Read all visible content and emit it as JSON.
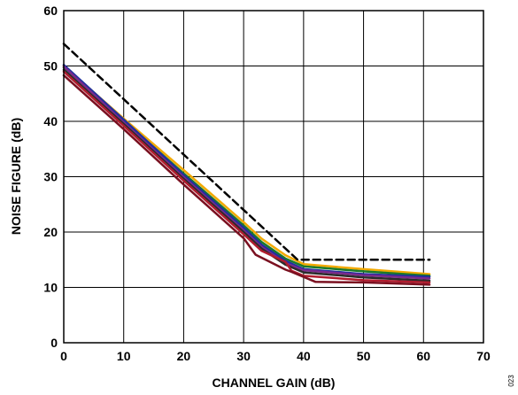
{
  "chart_data": {
    "type": "line",
    "xlabel": "CHANNEL GAIN (dB)",
    "ylabel": "NOISE FIGURE (dB)",
    "xlim": [
      0,
      70
    ],
    "ylim": [
      0,
      60
    ],
    "x_ticks": [
      0,
      10,
      20,
      30,
      40,
      50,
      60,
      70
    ],
    "y_ticks": [
      0,
      10,
      20,
      30,
      40,
      50,
      60
    ],
    "grid": true,
    "figure_id": "023",
    "series": [
      {
        "color": "#000000",
        "dashed": true,
        "x": [
          0,
          39,
          40,
          61
        ],
        "y": [
          54,
          15,
          15,
          15
        ]
      },
      {
        "color": "#f2a900",
        "x": [
          0,
          10,
          20,
          30,
          33,
          37,
          40,
          50,
          61
        ],
        "y": [
          50,
          40.5,
          31.2,
          21.8,
          18.8,
          15.8,
          14.2,
          13.3,
          12.4
        ]
      },
      {
        "color": "#1a7a2a",
        "x": [
          0,
          10,
          20,
          30,
          33,
          37,
          40,
          50,
          61
        ],
        "y": [
          49.7,
          40.1,
          30.6,
          21.2,
          18.2,
          15.2,
          13.8,
          12.9,
          12.1
        ]
      },
      {
        "color": "#1f2f9f",
        "x": [
          0,
          10,
          20,
          30,
          33,
          37,
          40,
          50,
          61
        ],
        "y": [
          50.2,
          40.3,
          30.3,
          20.8,
          17.7,
          14.8,
          13.3,
          12.4,
          11.9
        ]
      },
      {
        "color": "#7a2a8c",
        "x": [
          0,
          10,
          20,
          30,
          33,
          37,
          40,
          50,
          61
        ],
        "y": [
          49.9,
          39.8,
          29.9,
          20.3,
          17.3,
          14.4,
          13.1,
          12.2,
          11.6
        ]
      },
      {
        "color": "#2b2b2b",
        "x": [
          0,
          10,
          20,
          30,
          33,
          37,
          40,
          50,
          61
        ],
        "y": [
          49.3,
          39.5,
          29.6,
          20.0,
          17.0,
          14.1,
          12.7,
          11.8,
          11.2
        ]
      },
      {
        "color": "#b01c2e",
        "x": [
          0,
          10,
          20,
          30,
          33,
          37,
          38,
          40,
          50,
          61
        ],
        "y": [
          49.0,
          39.2,
          29.3,
          19.6,
          16.6,
          14.6,
          13.0,
          12.1,
          11.3,
          10.9
        ]
      },
      {
        "color": "#7a1020",
        "x": [
          0,
          10,
          20,
          30,
          32,
          37,
          38,
          42,
          50,
          61
        ],
        "y": [
          48.3,
          38.6,
          28.6,
          18.9,
          15.9,
          13.2,
          12.8,
          11.0,
          10.9,
          10.5
        ]
      }
    ]
  }
}
